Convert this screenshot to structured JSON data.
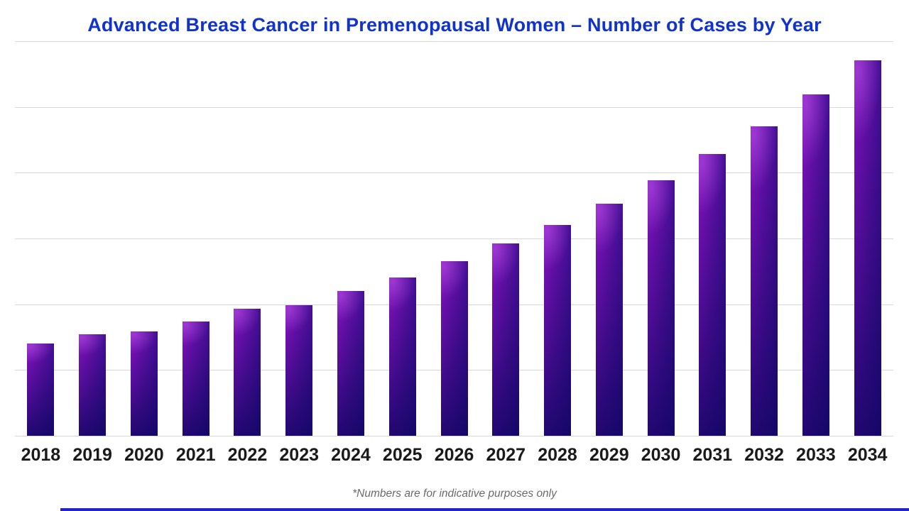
{
  "title": {
    "text": "Advanced Breast Cancer in Premenopausal Women – Number of Cases by Year",
    "color": "#1133cc"
  },
  "footnote": {
    "text": "*Numbers are for indicative purposes only",
    "color": "#6a6a6a"
  },
  "chart_data": {
    "type": "bar",
    "title": "Advanced Breast Cancer in Premenopausal Women – Number of Cases by Year",
    "categories": [
      "2018",
      "2019",
      "2020",
      "2021",
      "2022",
      "2023",
      "2024",
      "2025",
      "2026",
      "2027",
      "2028",
      "2029",
      "2030",
      "2031",
      "2032",
      "2033",
      "2034"
    ],
    "values": [
      14.0,
      15.4,
      15.9,
      17.4,
      19.3,
      19.9,
      22.0,
      24.1,
      26.6,
      29.2,
      32.1,
      35.3,
      38.9,
      42.8,
      47.1,
      51.9,
      57.1
    ],
    "xlabel": "",
    "ylabel": "",
    "ylim": [
      0,
      60
    ],
    "gridline_interval": 10,
    "grid": "horizontal",
    "legend": "none",
    "y_axis_tick_labels_visible": false,
    "value_scale_note": "no y-axis tick labels shown; values estimated in gridline units (1 gridline gap = 10)",
    "colors": {
      "bar_gradient_start": "#8912c4",
      "bar_gradient_end": "#0d0870",
      "gridline": "#d8d8d8",
      "x_label": "#1a1a1a"
    }
  },
  "accent": {
    "bottom_line_color": "#2323cc"
  }
}
